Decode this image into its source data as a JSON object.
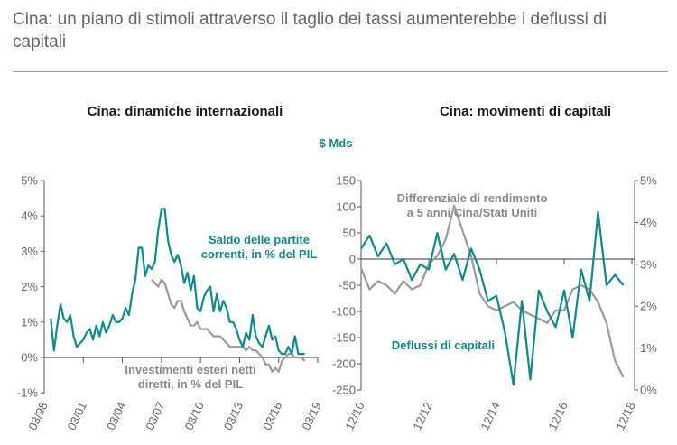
{
  "title": "Cina: un piano di stimoli attraverso il taglio dei tassi aumenterebbe i deflussi di capitali",
  "colors": {
    "teal": "#118a8a",
    "gray": "#9b9b9b",
    "axis": "#555555",
    "text": "#666666"
  },
  "chart_data": [
    {
      "type": "line",
      "title": "Cina: dinamiche internazionali",
      "x_ticks": [
        "03/98",
        "03/01",
        "03/04",
        "03/07",
        "03/10",
        "03/13",
        "03/16",
        "03/19"
      ],
      "y_ticks": [
        "5%",
        "4%",
        "3%",
        "2%",
        "1%",
        "0%",
        "-1%"
      ],
      "ylim": [
        -1,
        5
      ],
      "xlim": [
        1998.25,
        2019.25
      ],
      "series": [
        {
          "name": "Saldo delle partite correnti, in % del PIL",
          "label_lines": [
            "Saldo delle partite",
            "correnti, in % del PIL"
          ],
          "color": "#118a8a",
          "x": [
            1998.75,
            1999.0,
            1999.25,
            1999.5,
            1999.75,
            2000.0,
            2000.25,
            2000.5,
            2000.75,
            2001.0,
            2001.25,
            2001.5,
            2001.75,
            2002.0,
            2002.25,
            2002.5,
            2002.75,
            2003.0,
            2003.25,
            2003.5,
            2003.75,
            2004.0,
            2004.25,
            2004.5,
            2004.75,
            2005.0,
            2005.25,
            2005.5,
            2005.75,
            2006.0,
            2006.25,
            2006.5,
            2006.75,
            2007.0,
            2007.25,
            2007.5,
            2007.75,
            2008.0,
            2008.25,
            2008.5,
            2008.75,
            2009.0,
            2009.25,
            2009.5,
            2009.75,
            2010.0,
            2010.25,
            2010.5,
            2010.75,
            2011.0,
            2011.25,
            2011.5,
            2011.75,
            2012.0,
            2012.25,
            2012.5,
            2012.75,
            2013.0,
            2013.25,
            2013.5,
            2013.75,
            2014.0,
            2014.25,
            2014.5,
            2014.75,
            2015.0,
            2015.25,
            2015.5,
            2015.75,
            2016.0,
            2016.25,
            2016.5,
            2016.75,
            2017.0,
            2017.25,
            2017.5,
            2017.75,
            2018.0,
            2018.25
          ],
          "values": [
            1.1,
            0.2,
            0.9,
            1.5,
            1.1,
            1.0,
            1.2,
            0.6,
            0.3,
            0.4,
            0.5,
            0.7,
            0.8,
            0.5,
            0.9,
            0.6,
            1.0,
            0.7,
            0.9,
            1.2,
            1.0,
            1.0,
            1.1,
            1.4,
            1.2,
            1.8,
            2.2,
            3.1,
            3.1,
            2.3,
            2.6,
            2.5,
            2.7,
            3.6,
            4.2,
            4.2,
            3.3,
            2.9,
            2.7,
            2.9,
            2.6,
            2.1,
            2.4,
            1.9,
            2.3,
            1.4,
            1.3,
            1.7,
            1.9,
            2.0,
            1.3,
            1.8,
            1.3,
            1.6,
            1.4,
            1.0,
            1.0,
            0.8,
            0.5,
            0.3,
            0.7,
            0.5,
            1.2,
            0.6,
            0.4,
            0.3,
            0.6,
            0.9,
            0.5,
            0.6,
            0.2,
            0.1,
            0.1,
            0.3,
            0.1,
            0.6,
            0.1,
            0.1,
            0.1
          ]
        },
        {
          "name": "Investimenti esteri netti diretti, in % del PIL",
          "label_lines": [
            "Investimenti esteri netti",
            "diretti, in % del PIL"
          ],
          "color": "#9b9b9b",
          "x": [
            2006.5,
            2006.75,
            2007.0,
            2007.25,
            2007.5,
            2007.75,
            2008.0,
            2008.25,
            2008.5,
            2008.75,
            2009.0,
            2009.25,
            2009.5,
            2009.75,
            2010.0,
            2010.25,
            2010.5,
            2010.75,
            2011.0,
            2011.25,
            2011.5,
            2011.75,
            2012.0,
            2012.25,
            2012.5,
            2012.75,
            2013.0,
            2013.25,
            2013.5,
            2013.75,
            2014.0,
            2014.25,
            2014.5,
            2014.75,
            2015.0,
            2015.25,
            2015.5,
            2015.75,
            2016.0,
            2016.25,
            2016.5,
            2016.75,
            2017.0,
            2017.25,
            2017.5,
            2017.75,
            2018.0,
            2018.25
          ],
          "values": [
            2.2,
            2.1,
            2.0,
            2.2,
            2.1,
            1.8,
            1.5,
            1.4,
            1.6,
            1.6,
            1.3,
            1.1,
            0.9,
            0.9,
            1.0,
            0.8,
            0.8,
            0.8,
            0.7,
            0.6,
            0.6,
            0.6,
            0.5,
            0.4,
            0.3,
            0.3,
            0.3,
            0.3,
            0.3,
            0.2,
            0.3,
            0.2,
            0.2,
            0.1,
            0.0,
            -0.2,
            -0.2,
            -0.4,
            -0.3,
            -0.4,
            -0.1,
            0.0,
            0.1,
            0.1,
            0.0,
            0.0,
            0.0,
            -0.1
          ]
        }
      ]
    },
    {
      "type": "line",
      "title": "Cina: movimenti di capitali",
      "ylabel_left": "$ Mds",
      "x_ticks": [
        "12/10",
        "12/12",
        "12/14",
        "12/16",
        "12/18"
      ],
      "y_ticks_left": [
        "150",
        "100",
        "50",
        "0",
        "-50",
        "-100",
        "-150",
        "-200",
        "-250"
      ],
      "y_ticks_right": [
        "5%",
        "4%",
        "3%",
        "2%",
        "1%",
        "0%"
      ],
      "ylim_left": [
        -250,
        150
      ],
      "ylim_right": [
        0,
        5
      ],
      "xlim": [
        2010.92,
        2019.0
      ],
      "series": [
        {
          "name": "Deflussi di capitali",
          "label_lines": [
            "Deflussi di capitali"
          ],
          "axis": "left",
          "color": "#118a8a",
          "x": [
            2010.92,
            2011.17,
            2011.42,
            2011.67,
            2011.92,
            2012.17,
            2012.42,
            2012.67,
            2012.92,
            2013.17,
            2013.42,
            2013.67,
            2013.92,
            2014.17,
            2014.42,
            2014.67,
            2014.92,
            2015.17,
            2015.42,
            2015.67,
            2015.92,
            2016.17,
            2016.42,
            2016.67,
            2016.92,
            2017.17,
            2017.42,
            2017.67,
            2017.92,
            2018.17,
            2018.42,
            2018.67
          ],
          "values": [
            20,
            45,
            5,
            30,
            -10,
            0,
            -40,
            -10,
            -20,
            50,
            -20,
            10,
            -40,
            20,
            -20,
            -80,
            -70,
            -140,
            -240,
            -80,
            -230,
            -60,
            -100,
            -130,
            -60,
            -150,
            -20,
            -80,
            90,
            -50,
            -30,
            -50
          ]
        },
        {
          "name": "Differenziale di rendimento a 5 anni Cina/Stati Uniti",
          "label_lines": [
            "Differenziale di rendimento",
            "a 5 anni Cina/Stati Uniti"
          ],
          "axis": "right",
          "color": "#9b9b9b",
          "x": [
            2010.92,
            2011.17,
            2011.42,
            2011.67,
            2011.92,
            2012.17,
            2012.42,
            2012.67,
            2012.92,
            2013.17,
            2013.42,
            2013.67,
            2013.92,
            2014.17,
            2014.42,
            2014.67,
            2014.92,
            2015.17,
            2015.42,
            2015.67,
            2015.92,
            2016.17,
            2016.42,
            2016.67,
            2016.92,
            2017.17,
            2017.42,
            2017.67,
            2017.92,
            2018.17,
            2018.42,
            2018.67
          ],
          "values": [
            2.9,
            2.4,
            2.6,
            2.5,
            2.3,
            2.6,
            2.4,
            2.5,
            3.0,
            3.2,
            3.6,
            4.4,
            3.8,
            3.2,
            2.3,
            2.0,
            1.9,
            2.0,
            2.1,
            1.9,
            1.8,
            1.7,
            1.6,
            1.9,
            1.9,
            2.4,
            2.5,
            2.4,
            2.1,
            1.6,
            0.7,
            0.3
          ]
        }
      ]
    }
  ]
}
